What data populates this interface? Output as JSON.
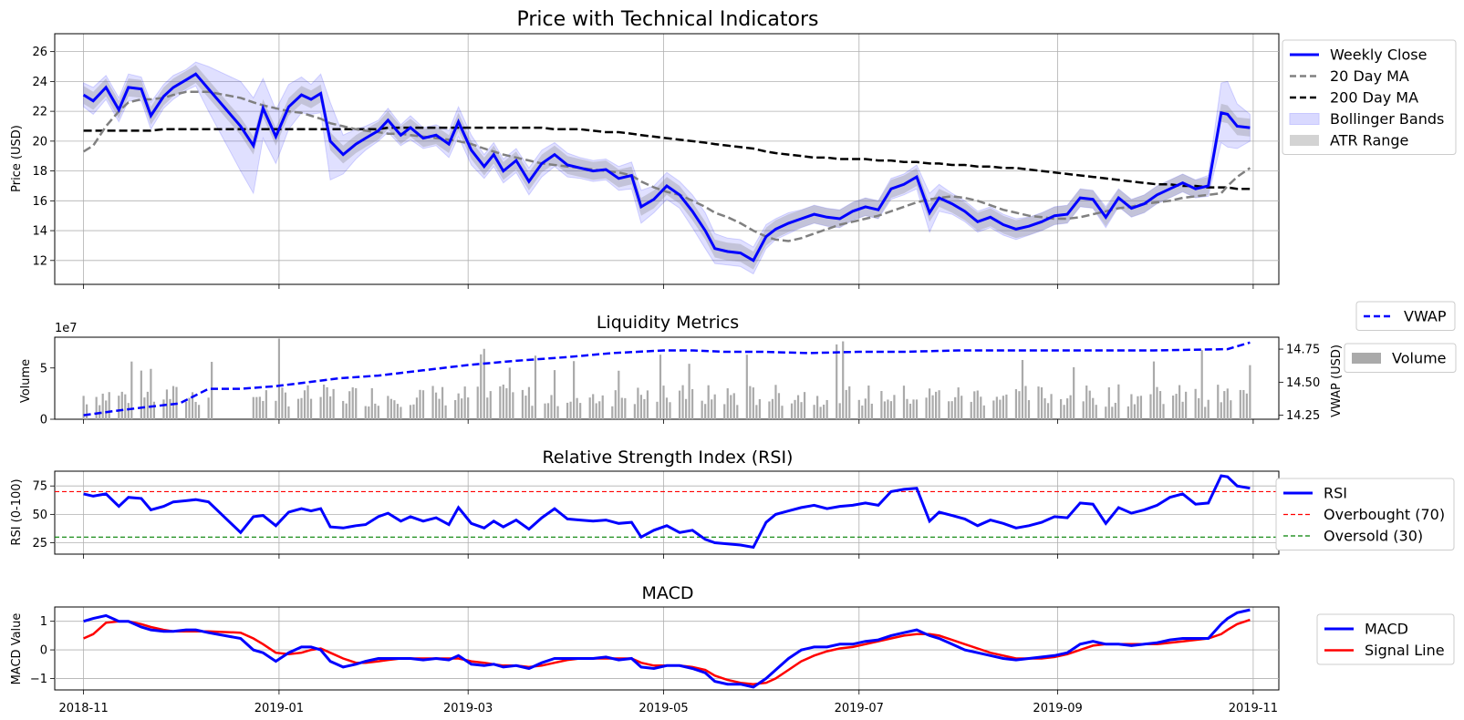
{
  "chart_data": [
    {
      "type": "line",
      "title": "Price with Technical Indicators",
      "ylabel": "Price (USD)",
      "ylim": [
        10.4,
        27.2
      ],
      "yticks": [
        12,
        14,
        16,
        18,
        20,
        22,
        24,
        26
      ],
      "grid": true,
      "legend_placement": "outside-right",
      "x": [
        "2018-11-01",
        "2018-11-04",
        "2018-11-08",
        "2018-11-12",
        "2018-11-15",
        "2018-11-19",
        "2018-11-22",
        "2018-11-26",
        "2018-11-29",
        "2018-12-03",
        "2018-12-06",
        "2018-12-10",
        "2018-12-20",
        "2018-12-24",
        "2018-12-27",
        "2018-12-31",
        "2019-01-04",
        "2019-01-08",
        "2019-01-11",
        "2019-01-14",
        "2019-01-17",
        "2019-01-21",
        "2019-01-25",
        "2019-01-28",
        "2019-02-01",
        "2019-02-04",
        "2019-02-08",
        "2019-02-11",
        "2019-02-15",
        "2019-02-19",
        "2019-02-23",
        "2019-02-26",
        "2019-03-02",
        "2019-03-06",
        "2019-03-09",
        "2019-03-12",
        "2019-03-16",
        "2019-03-20",
        "2019-03-24",
        "2019-03-28",
        "2019-04-01",
        "2019-04-05",
        "2019-04-09",
        "2019-04-13",
        "2019-04-17",
        "2019-04-21",
        "2019-04-24",
        "2019-04-28",
        "2019-05-02",
        "2019-05-06",
        "2019-05-10",
        "2019-05-14",
        "2019-05-17",
        "2019-05-21",
        "2019-05-25",
        "2019-05-29",
        "2019-06-02",
        "2019-06-05",
        "2019-06-09",
        "2019-06-13",
        "2019-06-17",
        "2019-06-21",
        "2019-06-25",
        "2019-06-29",
        "2019-07-03",
        "2019-07-07",
        "2019-07-11",
        "2019-07-15",
        "2019-07-19",
        "2019-07-23",
        "2019-07-26",
        "2019-07-30",
        "2019-08-03",
        "2019-08-07",
        "2019-08-11",
        "2019-08-15",
        "2019-08-19",
        "2019-08-23",
        "2019-08-27",
        "2019-08-31",
        "2019-09-04",
        "2019-09-08",
        "2019-09-12",
        "2019-09-16",
        "2019-09-20",
        "2019-09-24",
        "2019-09-28",
        "2019-10-02",
        "2019-10-06",
        "2019-10-10",
        "2019-10-14",
        "2019-10-18",
        "2019-10-22",
        "2019-10-24",
        "2019-10-27",
        "2019-10-31"
      ],
      "series": [
        {
          "name": "Weekly Close",
          "color": "#0000ff",
          "style": "solid",
          "values": [
            23.1,
            22.7,
            23.6,
            22.1,
            23.6,
            23.5,
            21.7,
            23.0,
            23.6,
            24.1,
            24.5,
            23.5,
            21.0,
            19.7,
            22.2,
            20.3,
            22.3,
            23.1,
            22.8,
            23.2,
            20.0,
            19.1,
            19.8,
            20.2,
            20.7,
            21.4,
            20.4,
            20.9,
            20.2,
            20.4,
            19.8,
            21.3,
            19.4,
            18.3,
            19.1,
            18.0,
            18.7,
            17.3,
            18.5,
            19.1,
            18.4,
            18.2,
            18.0,
            18.1,
            17.5,
            17.7,
            15.6,
            16.1,
            17.0,
            16.4,
            15.3,
            14.0,
            12.8,
            12.6,
            12.5,
            12.0,
            13.6,
            14.1,
            14.5,
            14.8,
            15.1,
            14.9,
            14.8,
            15.3,
            15.6,
            15.4,
            16.8,
            17.1,
            17.6,
            15.2,
            16.2,
            15.8,
            15.3,
            14.6,
            14.9,
            14.4,
            14.1,
            14.3,
            14.6,
            15.0,
            15.1,
            16.2,
            16.1,
            14.9,
            16.2,
            15.5,
            15.8,
            16.4,
            16.8,
            17.2,
            16.8,
            17.0,
            21.9,
            21.8,
            21.0,
            20.9
          ]
        },
        {
          "name": "20 Day MA",
          "color": "#808080",
          "style": "dashed",
          "values": [
            19.3,
            19.7,
            21.0,
            22.0,
            22.6,
            22.8,
            22.8,
            22.9,
            23.1,
            23.3,
            23.3,
            23.3,
            22.9,
            22.6,
            22.4,
            22.2,
            22.0,
            21.9,
            21.7,
            21.5,
            21.2,
            21.0,
            20.8,
            20.7,
            20.6,
            20.5,
            20.5,
            20.4,
            20.3,
            20.2,
            20.1,
            20.0,
            19.8,
            19.5,
            19.3,
            19.1,
            18.9,
            18.7,
            18.5,
            18.4,
            18.3,
            18.2,
            18.1,
            18.0,
            17.9,
            17.7,
            17.3,
            16.9,
            16.6,
            16.4,
            16.0,
            15.6,
            15.2,
            14.9,
            14.5,
            14.0,
            13.6,
            13.4,
            13.3,
            13.5,
            13.8,
            14.1,
            14.4,
            14.6,
            14.8,
            15.0,
            15.3,
            15.6,
            15.9,
            16.1,
            16.2,
            16.3,
            16.2,
            16.0,
            15.7,
            15.4,
            15.2,
            15.0,
            14.9,
            14.8,
            14.8,
            14.9,
            15.1,
            15.3,
            15.5,
            15.6,
            15.8,
            15.9,
            16.0,
            16.2,
            16.3,
            16.4,
            16.5,
            17.0,
            17.6,
            18.2
          ]
        },
        {
          "name": "200 Day MA",
          "color": "#000000",
          "style": "dashed",
          "values": [
            20.7,
            20.7,
            20.7,
            20.7,
            20.7,
            20.7,
            20.7,
            20.8,
            20.8,
            20.8,
            20.8,
            20.8,
            20.8,
            20.8,
            20.8,
            20.8,
            20.8,
            20.8,
            20.8,
            20.8,
            20.8,
            20.8,
            20.8,
            20.8,
            20.8,
            20.9,
            20.9,
            20.9,
            20.9,
            20.9,
            20.9,
            20.9,
            20.9,
            20.9,
            20.9,
            20.9,
            20.9,
            20.9,
            20.9,
            20.8,
            20.8,
            20.8,
            20.7,
            20.6,
            20.6,
            20.5,
            20.4,
            20.3,
            20.2,
            20.1,
            20.0,
            19.9,
            19.8,
            19.7,
            19.6,
            19.5,
            19.3,
            19.2,
            19.1,
            19.0,
            18.9,
            18.9,
            18.8,
            18.8,
            18.8,
            18.7,
            18.7,
            18.6,
            18.6,
            18.5,
            18.5,
            18.4,
            18.4,
            18.3,
            18.3,
            18.2,
            18.2,
            18.1,
            18.0,
            17.9,
            17.8,
            17.7,
            17.6,
            17.5,
            17.4,
            17.3,
            17.2,
            17.1,
            17.1,
            17.0,
            17.0,
            16.9,
            16.9,
            16.9,
            16.8,
            16.8
          ]
        },
        {
          "name": "Bollinger Bands",
          "color": "#0000ff",
          "style": "band-upper-lower",
          "band_half_width": [
            0.8,
            0.9,
            0.8,
            0.8,
            0.9,
            0.8,
            0.9,
            0.8,
            0.8,
            0.7,
            0.8,
            1.5,
            3.0,
            3.2,
            2.0,
            1.8,
            1.5,
            1.2,
            1.0,
            1.3,
            2.6,
            1.3,
            1.0,
            0.8,
            0.7,
            0.8,
            0.7,
            0.8,
            0.7,
            0.7,
            0.9,
            1.0,
            1.0,
            0.8,
            0.8,
            0.8,
            0.8,
            0.9,
            0.9,
            0.8,
            0.8,
            0.7,
            0.7,
            0.7,
            0.8,
            0.9,
            1.1,
            0.9,
            0.9,
            0.9,
            1.1,
            1.2,
            1.0,
            0.9,
            0.9,
            0.9,
            0.8,
            0.7,
            0.7,
            0.6,
            0.6,
            0.6,
            0.6,
            0.6,
            0.6,
            0.6,
            0.7,
            0.7,
            0.8,
            1.3,
            0.9,
            0.7,
            0.7,
            0.7,
            0.7,
            0.7,
            0.7,
            0.6,
            0.6,
            0.6,
            0.6,
            0.6,
            0.6,
            0.7,
            0.6,
            0.6,
            0.6,
            0.6,
            0.6,
            0.6,
            0.6,
            0.7,
            2.0,
            2.2,
            1.5,
            0.9
          ]
        },
        {
          "name": "ATR Range",
          "color": "#808080",
          "style": "band-around-close",
          "band_half_width": [
            0.6,
            0.6,
            0.6,
            0.6,
            0.6,
            0.6,
            0.6,
            0.6,
            0.6,
            0.6,
            0.6,
            0.6,
            0.6,
            0.6,
            0.6,
            0.6,
            0.6,
            0.6,
            0.6,
            0.6,
            0.6,
            0.6,
            0.6,
            0.6,
            0.6,
            0.6,
            0.6,
            0.6,
            0.6,
            0.6,
            0.6,
            0.6,
            0.6,
            0.6,
            0.6,
            0.6,
            0.6,
            0.6,
            0.6,
            0.6,
            0.6,
            0.6,
            0.6,
            0.6,
            0.6,
            0.6,
            0.6,
            0.6,
            0.6,
            0.6,
            0.6,
            0.6,
            0.6,
            0.6,
            0.6,
            0.6,
            0.6,
            0.6,
            0.6,
            0.6,
            0.6,
            0.6,
            0.6,
            0.6,
            0.6,
            0.6,
            0.6,
            0.6,
            0.6,
            0.6,
            0.6,
            0.6,
            0.6,
            0.6,
            0.6,
            0.6,
            0.6,
            0.6,
            0.6,
            0.6,
            0.6,
            0.6,
            0.6,
            0.6,
            0.6,
            0.6,
            0.6,
            0.6,
            0.6,
            0.6,
            0.6,
            0.6,
            0.6,
            0.6,
            0.6,
            0.6
          ]
        }
      ]
    },
    {
      "type": "bar",
      "title": "Liquidity Metrics",
      "ylabel": "Volume",
      "y_exponent_label": "1e7",
      "ylim": [
        0,
        8.0
      ],
      "yticks": [
        0,
        5
      ],
      "secondary_ylabel": "VWAP (USD)",
      "secondary_ylim": [
        14.22,
        14.84
      ],
      "secondary_yticks": [
        "14.25",
        "14.50",
        "14.75"
      ],
      "grid": false,
      "volume_series": {
        "name": "Volume",
        "color": "#aaaaaa"
      },
      "vwap_series": {
        "name": "VWAP",
        "color": "#0000ff",
        "style": "dashed",
        "x": [
          "2018-11-01",
          "2018-11-10",
          "2018-11-20",
          "2018-12-01",
          "2018-12-10",
          "2018-12-20",
          "2018-12-31",
          "2019-01-10",
          "2019-01-20",
          "2019-02-01",
          "2019-02-15",
          "2019-03-01",
          "2019-03-15",
          "2019-04-01",
          "2019-04-15",
          "2019-05-01",
          "2019-05-10",
          "2019-05-20",
          "2019-06-01",
          "2019-06-15",
          "2019-07-01",
          "2019-07-15",
          "2019-08-01",
          "2019-09-01",
          "2019-10-01",
          "2019-10-24",
          "2019-10-31"
        ],
        "values": [
          14.25,
          14.28,
          14.31,
          14.34,
          14.45,
          14.45,
          14.47,
          14.5,
          14.53,
          14.55,
          14.59,
          14.63,
          14.66,
          14.69,
          14.72,
          14.74,
          14.74,
          14.73,
          14.73,
          14.72,
          14.73,
          14.73,
          14.74,
          14.74,
          14.74,
          14.75,
          14.8
        ]
      }
    },
    {
      "type": "line",
      "title": "Relative Strength Index (RSI)",
      "ylabel": "RSI (0-100)",
      "ylim": [
        15,
        88
      ],
      "yticks": [
        25,
        50,
        75
      ],
      "grid": true,
      "legend_placement": "outside-right",
      "series": [
        {
          "name": "RSI",
          "color": "#0000ff",
          "style": "solid",
          "values": [
            68,
            66,
            68,
            57,
            65,
            64,
            54,
            57,
            61,
            62,
            63,
            61,
            34,
            48,
            49,
            40,
            52,
            55,
            53,
            55,
            39,
            38,
            40,
            41,
            48,
            51,
            44,
            48,
            44,
            47,
            41,
            56,
            42,
            38,
            44,
            39,
            45,
            37,
            47,
            55,
            46,
            45,
            44,
            45,
            42,
            43,
            30,
            36,
            40,
            34,
            36,
            28,
            25,
            24,
            23,
            21,
            43,
            50,
            53,
            56,
            58,
            55,
            57,
            58,
            60,
            58,
            70,
            72,
            73,
            44,
            52,
            49,
            46,
            40,
            45,
            42,
            38,
            40,
            43,
            48,
            47,
            60,
            59,
            42,
            56,
            51,
            54,
            58,
            65,
            68,
            59,
            60,
            84,
            83,
            75,
            73
          ]
        },
        {
          "name": "Overbought (70)",
          "color": "#ff0000",
          "style": "dashed",
          "level": 70
        },
        {
          "name": "Oversold (30)",
          "color": "#008000",
          "style": "dashed",
          "level": 30
        }
      ]
    },
    {
      "type": "line",
      "title": "MACD",
      "ylabel": "MACD Value",
      "ylim": [
        -1.4,
        1.5
      ],
      "yticks": [
        -1,
        0,
        1
      ],
      "grid": true,
      "legend_placement": "outside-right",
      "x_tick_labels": [
        "2018-11",
        "2019-01",
        "2019-03",
        "2019-05",
        "2019-07",
        "2019-09",
        "2019-11"
      ],
      "series": [
        {
          "name": "MACD",
          "color": "#0000ff",
          "style": "solid",
          "values": [
            1.0,
            1.1,
            1.2,
            1.0,
            1.0,
            0.8,
            0.7,
            0.65,
            0.65,
            0.7,
            0.7,
            0.6,
            0.4,
            0.0,
            -0.1,
            -0.4,
            -0.1,
            0.1,
            0.1,
            0.0,
            -0.4,
            -0.6,
            -0.5,
            -0.4,
            -0.3,
            -0.3,
            -0.3,
            -0.3,
            -0.35,
            -0.3,
            -0.35,
            -0.2,
            -0.5,
            -0.55,
            -0.5,
            -0.6,
            -0.55,
            -0.65,
            -0.45,
            -0.3,
            -0.3,
            -0.3,
            -0.3,
            -0.25,
            -0.35,
            -0.3,
            -0.6,
            -0.65,
            -0.55,
            -0.55,
            -0.65,
            -0.8,
            -1.1,
            -1.2,
            -1.2,
            -1.3,
            -1.0,
            -0.7,
            -0.3,
            0.0,
            0.1,
            0.1,
            0.2,
            0.2,
            0.3,
            0.35,
            0.5,
            0.6,
            0.7,
            0.5,
            0.4,
            0.2,
            0.0,
            -0.1,
            -0.2,
            -0.3,
            -0.35,
            -0.3,
            -0.25,
            -0.2,
            -0.1,
            0.2,
            0.3,
            0.2,
            0.2,
            0.15,
            0.2,
            0.25,
            0.35,
            0.4,
            0.4,
            0.4,
            0.9,
            1.1,
            1.3,
            1.4
          ]
        },
        {
          "name": "Signal Line",
          "color": "#ff0000",
          "style": "solid",
          "values": [
            0.4,
            0.55,
            0.95,
            1.0,
            1.0,
            0.9,
            0.8,
            0.7,
            0.65,
            0.65,
            0.65,
            0.65,
            0.6,
            0.4,
            0.2,
            -0.1,
            -0.15,
            -0.1,
            0.0,
            0.05,
            -0.1,
            -0.3,
            -0.45,
            -0.45,
            -0.4,
            -0.35,
            -0.3,
            -0.3,
            -0.3,
            -0.3,
            -0.3,
            -0.3,
            -0.4,
            -0.45,
            -0.5,
            -0.55,
            -0.55,
            -0.6,
            -0.55,
            -0.45,
            -0.35,
            -0.3,
            -0.3,
            -0.3,
            -0.3,
            -0.3,
            -0.45,
            -0.55,
            -0.55,
            -0.55,
            -0.6,
            -0.7,
            -0.9,
            -1.05,
            -1.15,
            -1.2,
            -1.15,
            -1.0,
            -0.7,
            -0.4,
            -0.2,
            -0.05,
            0.05,
            0.1,
            0.2,
            0.3,
            0.4,
            0.5,
            0.55,
            0.55,
            0.5,
            0.35,
            0.2,
            0.05,
            -0.1,
            -0.2,
            -0.3,
            -0.3,
            -0.3,
            -0.25,
            -0.15,
            0.0,
            0.15,
            0.2,
            0.2,
            0.2,
            0.2,
            0.2,
            0.25,
            0.3,
            0.35,
            0.4,
            0.55,
            0.7,
            0.9,
            1.05
          ]
        }
      ]
    }
  ]
}
